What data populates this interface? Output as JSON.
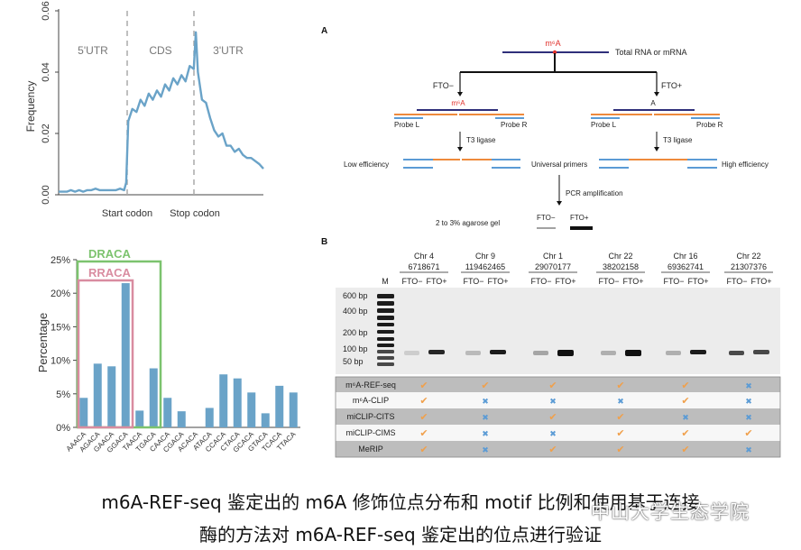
{
  "figure": {
    "caption_line1": "m6A-REF-seq 鉴定出的 m6A 修饰位点分布和 motif 比例和使用基于连接",
    "caption_line2": "酶的方法对 m6A-REF-seq 鉴定出的位点进行验证",
    "watermark": "中山大学生态学院"
  },
  "chart_data": [
    {
      "type": "line",
      "title": "",
      "xlabel": "",
      "ylabel": "Frequency",
      "ylim": [
        0,
        0.06
      ],
      "yticks": [
        "0.00",
        "0.02",
        "0.04",
        "0.06"
      ],
      "regions": [
        "5'UTR",
        "CDS",
        "3'UTR"
      ],
      "xtick_labels": [
        "Start codon",
        "Stop codon"
      ],
      "color": "#6aa3c8",
      "x": [
        0,
        2,
        4,
        6,
        8,
        10,
        12,
        14,
        16,
        18,
        20,
        22,
        24,
        26,
        28,
        30,
        32,
        33,
        34,
        36,
        38,
        40,
        42,
        44,
        46,
        48,
        50,
        52,
        54,
        56,
        58,
        60,
        62,
        64,
        66,
        67,
        68,
        70,
        72,
        74,
        76,
        78,
        80,
        82,
        84,
        86,
        88,
        90,
        92,
        94,
        96,
        98,
        100
      ],
      "y": [
        0.001,
        0.001,
        0.001,
        0.0015,
        0.001,
        0.0015,
        0.001,
        0.0015,
        0.0015,
        0.002,
        0.0015,
        0.0015,
        0.0015,
        0.0015,
        0.0015,
        0.002,
        0.0015,
        0.004,
        0.024,
        0.028,
        0.027,
        0.031,
        0.029,
        0.033,
        0.031,
        0.034,
        0.032,
        0.036,
        0.034,
        0.038,
        0.036,
        0.039,
        0.037,
        0.042,
        0.041,
        0.053,
        0.04,
        0.031,
        0.03,
        0.025,
        0.021,
        0.019,
        0.02,
        0.016,
        0.016,
        0.014,
        0.015,
        0.013,
        0.012,
        0.012,
        0.011,
        0.01,
        0.0085
      ]
    },
    {
      "type": "bar",
      "title": "",
      "xlabel": "",
      "ylabel": "Percentage",
      "ylim": [
        0,
        25
      ],
      "yticks": [
        "0%",
        "5%",
        "10%",
        "15%",
        "20%",
        "25%"
      ],
      "color": "#6aa3c8",
      "categories": [
        "AAACA",
        "AGACA",
        "GAACA",
        "GGACA",
        "TAACA",
        "TGACA",
        "CAACA",
        "CGACA",
        "ACACA",
        "ATACA",
        "CCACA",
        "CTACA",
        "GCACA",
        "GTACA",
        "TCACA",
        "TTACA"
      ],
      "values": [
        4.4,
        9.5,
        9.1,
        21.5,
        2.5,
        8.8,
        4.4,
        2.4,
        0,
        2.9,
        7.9,
        7.3,
        5.2,
        2.1,
        6.2,
        5.2
      ],
      "annotations": [
        {
          "label": "DRACA",
          "color": "#7cc36e"
        },
        {
          "label": "RRACA",
          "color": "#d98ca0"
        }
      ]
    }
  ],
  "panel_a": {
    "label": "A",
    "m6a": "m⁶A",
    "total_rna": "Total RNA or mRNA",
    "fto_minus": "FTO−",
    "fto_plus": "FTO+",
    "a_base": "A",
    "probe_l": "Probe L",
    "probe_r": "Probe R",
    "t3_ligase": "T3 ligase",
    "low_eff": "Low efficiency",
    "universal": "Universal primers",
    "high_eff": "High efficiency",
    "pcr": "PCR amplification",
    "agarose": "2 to 3% agarose gel"
  },
  "panel_b": {
    "label": "B",
    "marker_col": "M",
    "loci": [
      {
        "chr": "Chr 4",
        "pos": "6718671"
      },
      {
        "chr": "Chr 9",
        "pos": "119462465"
      },
      {
        "chr": "Chr 1",
        "pos": "29070177"
      },
      {
        "chr": "Chr 22",
        "pos": "38202158"
      },
      {
        "chr": "Chr 16",
        "pos": "69362741"
      },
      {
        "chr": "Chr 22",
        "pos": "21307376"
      }
    ],
    "lane_minus": "FTO−",
    "lane_plus": "FTO+",
    "ladder": [
      "600 bp",
      "400 bp",
      "200 bp",
      "100 bp",
      "50 bp"
    ],
    "methods": [
      "m⁶A-REF-seq",
      "m⁶A-CLIP",
      "miCLIP-CITS",
      "miCLIP-CIMS",
      "MeRIP"
    ],
    "check_symbol": "✔",
    "cross_symbol": "✖",
    "check_color": "#f0a04b",
    "cross_color": "#5b9bd5",
    "matrix": [
      [
        1,
        1,
        1,
        1,
        1,
        0
      ],
      [
        1,
        0,
        0,
        0,
        1,
        0
      ],
      [
        1,
        0,
        1,
        1,
        0,
        0
      ],
      [
        1,
        0,
        0,
        1,
        1,
        1
      ],
      [
        1,
        0,
        1,
        1,
        1,
        0
      ]
    ]
  }
}
